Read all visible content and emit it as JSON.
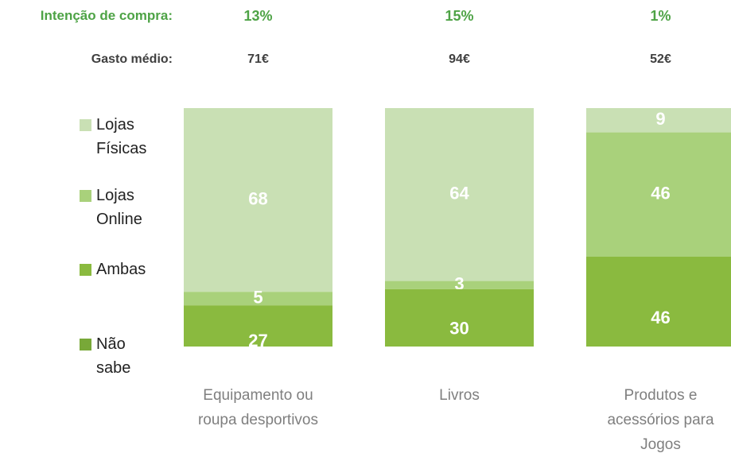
{
  "chart_data": {
    "type": "stacked_bar",
    "annotations": [
      {
        "label": "Intenção de compra:",
        "values": [
          "13%",
          "15%",
          "1%"
        ],
        "color": "#4ea346"
      },
      {
        "label": "Gasto médio:",
        "values": [
          "71€",
          "94€",
          "52€"
        ],
        "color": "#404040"
      }
    ],
    "categories": [
      "Equipamento ou roupa desportivos",
      "Livros",
      "Produtos e acessórios para Jogos"
    ],
    "series": [
      {
        "name": "Lojas Físicas",
        "color": "#c9e0b4",
        "values": [
          68,
          64,
          9
        ]
      },
      {
        "name": "Lojas Online",
        "color": "#a9d17b",
        "values": [
          5,
          3,
          46
        ]
      },
      {
        "name": "Ambas",
        "color": "#8aba3f",
        "values": [
          27,
          30,
          46
        ]
      },
      {
        "name": "Não sabe",
        "color": "#78a838",
        "values": [
          null,
          null,
          null
        ]
      }
    ],
    "ylim": [
      0,
      100
    ]
  }
}
